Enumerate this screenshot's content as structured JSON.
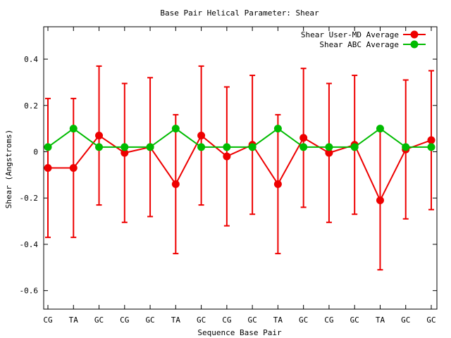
{
  "chart_data": {
    "type": "line",
    "title": "Base Pair Helical Parameter: Shear",
    "xlabel": "Sequence Base Pair",
    "ylabel": "Shear (Angstroms)",
    "categories": [
      "CG",
      "TA",
      "GC",
      "CG",
      "GC",
      "TA",
      "GC",
      "CG",
      "GC",
      "TA",
      "GC",
      "CG",
      "GC",
      "TA",
      "GC",
      "GC"
    ],
    "ylim": [
      -0.68,
      0.54
    ],
    "yticks": [
      -0.6,
      -0.4,
      -0.2,
      0,
      0.2,
      0.4
    ],
    "ytick_labels": [
      "-0.6",
      "-0.4",
      "-0.2",
      "0",
      "0.2",
      "0.4"
    ],
    "legend_position": "top-right",
    "grid": false,
    "series": [
      {
        "name": "Shear User-MD Average",
        "color": "#ee0000",
        "values": [
          -0.07,
          -0.07,
          0.07,
          -0.005,
          0.02,
          -0.14,
          0.07,
          -0.02,
          0.03,
          -0.14,
          0.06,
          -0.005,
          0.03,
          -0.21,
          0.01,
          0.05
        ],
        "error": [
          0.3,
          0.3,
          0.3,
          0.3,
          0.3,
          0.3,
          0.3,
          0.3,
          0.3,
          0.3,
          0.3,
          0.3,
          0.3,
          0.3,
          0.3,
          0.3
        ]
      },
      {
        "name": "Shear ABC Average",
        "color": "#00bb00",
        "values": [
          0.02,
          0.1,
          0.02,
          0.02,
          0.02,
          0.1,
          0.02,
          0.02,
          0.02,
          0.1,
          0.02,
          0.02,
          0.02,
          0.1,
          0.02,
          0.02
        ]
      }
    ]
  }
}
